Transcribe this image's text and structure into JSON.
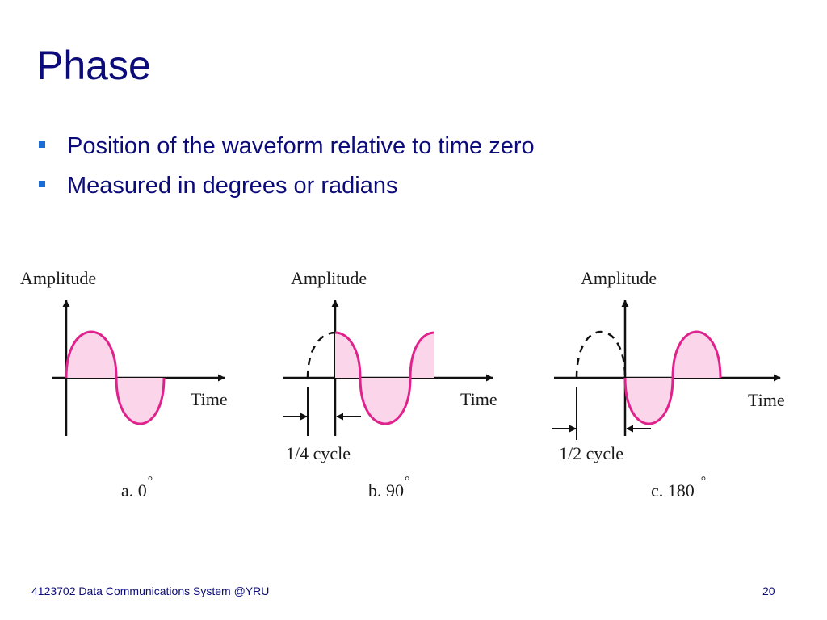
{
  "slide": {
    "title": "Phase",
    "bullets": [
      "Position of the waveform relative to time zero",
      "Measured in degrees or radians"
    ]
  },
  "diagram": {
    "panels": [
      {
        "y_axis_label": "Amplitude",
        "x_axis_label": "Time",
        "shift_label": "",
        "caption": "a. 0",
        "degree_mark": "°"
      },
      {
        "y_axis_label": "Amplitude",
        "x_axis_label": "Time",
        "shift_label": "1/4 cycle",
        "caption": "b. 90",
        "degree_mark": "°"
      },
      {
        "y_axis_label": "Amplitude",
        "x_axis_label": "Time",
        "shift_label": "1/2 cycle",
        "caption": "c. 180",
        "degree_mark": "°"
      }
    ],
    "colors": {
      "wave": "#e0238c",
      "fill": "#fbd6ea",
      "axis": "#111111",
      "text": "#1a1a1a"
    }
  },
  "footer": {
    "course": "4123702 Data Communications System @YRU",
    "page_number": "20"
  }
}
